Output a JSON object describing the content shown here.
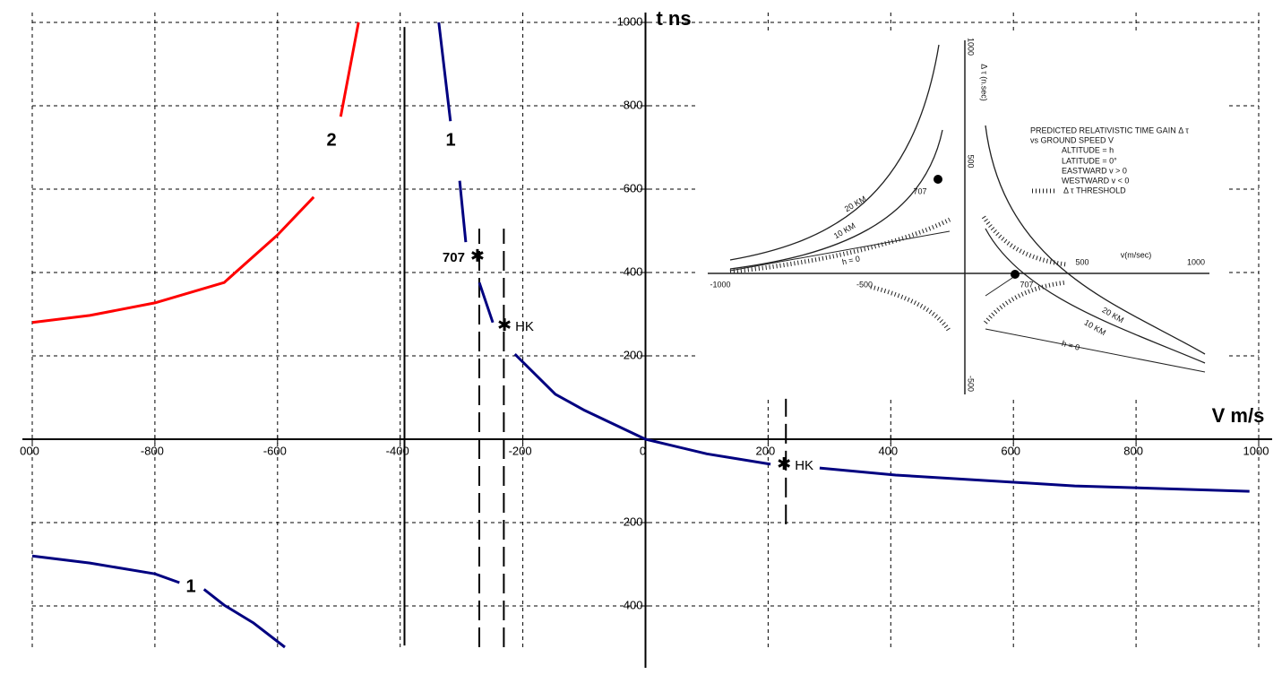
{
  "chart_data": {
    "type": "line",
    "x_label": "V m/s",
    "y_label": "t ns",
    "xlim": [
      -1000,
      1000
    ],
    "ylim": [
      -550,
      1010
    ],
    "xticks": [
      {
        "value": -1000,
        "label": "000"
      },
      -800,
      -600,
      -400,
      -200,
      0,
      200,
      400,
      600,
      800,
      1000
    ],
    "yticks": [
      1000,
      800,
      600,
      400,
      200,
      -200,
      -400
    ],
    "grid": true,
    "series": [
      {
        "name": "2",
        "color": "#ff0000",
        "x": [
          -1000,
          -906,
          -800,
          -687,
          -600,
          -541,
          null,
          -497,
          -468
        ],
        "values": [
          280,
          297,
          327,
          376,
          490,
          581,
          null,
          774,
          1000
        ]
      },
      {
        "name": "1",
        "color": "#000080",
        "x": [
          -337,
          -318,
          null,
          -303,
          -293,
          null,
          -271,
          -249,
          null,
          -213,
          -147,
          -99,
          0,
          100,
          204,
          null,
          284,
          408,
          700,
          985
        ],
        "values": [
          1000,
          763,
          null,
          620,
          473,
          null,
          376,
          280,
          null,
          204,
          108,
          69,
          0,
          -35,
          -60,
          null,
          -69,
          -86,
          -112,
          -125
        ]
      },
      {
        "name": "1",
        "color": "#000080",
        "x": [
          -1000,
          -906,
          -800,
          -760,
          null,
          -720,
          -687,
          -640,
          -588
        ],
        "values": [
          -280,
          -297,
          -323,
          -344,
          null,
          -360,
          -398,
          -440,
          -499
        ]
      }
    ],
    "reference_lines": [
      {
        "x": -393,
        "y": [
          -495,
          989
        ],
        "style": "solid"
      },
      {
        "x": -271,
        "y": [
          -499,
          505
        ],
        "style": "dashed"
      },
      {
        "x": -231,
        "y": [
          -499,
          505
        ],
        "style": "dashed"
      },
      {
        "x": 229,
        "y": [
          -204,
          97
        ],
        "style": "dashed"
      }
    ],
    "markers": [
      {
        "label": "707",
        "x": -274,
        "y": 441,
        "side": "left"
      },
      {
        "label": "HK",
        "x": -230,
        "y": 275,
        "side": "right"
      },
      {
        "label": "HK",
        "x": 226,
        "y": -58,
        "side": "right"
      }
    ]
  },
  "inset": {
    "legend": [
      "PREDICTED RELATIVISTIC TIME GAIN Δ τ",
      "vs GROUND SPEED V",
      "ALTITUDE    = h",
      "LATITUDE    = 0°",
      "EASTWARD  v > 0",
      "WESTWARD  v < 0",
      "Δ τ  THRESHOLD"
    ],
    "labels": [
      "20 KM",
      "10 KM",
      "h = 0",
      "707",
      "707",
      "20 KM",
      "10 KM",
      "h = 0",
      "1000",
      "500",
      "-500",
      "-1000",
      "-500",
      "500",
      "1000",
      "v(m/sec)",
      "Δ τ (n.sec)"
    ]
  }
}
